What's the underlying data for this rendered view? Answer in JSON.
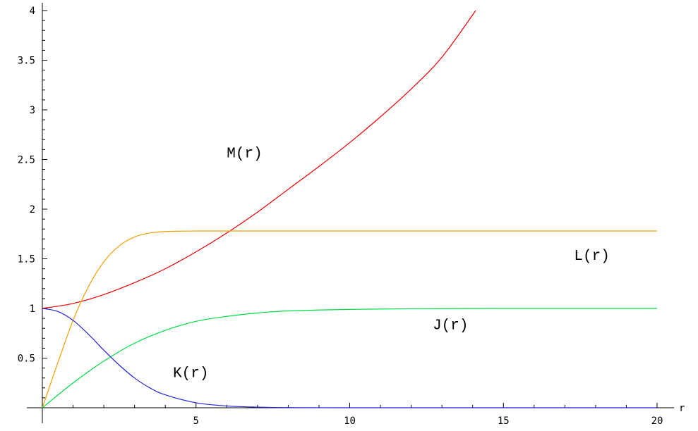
{
  "chart_data": {
    "type": "line",
    "title": "",
    "xlabel": "r",
    "ylabel": "",
    "xlim": [
      0,
      20
    ],
    "ylim": [
      0,
      4
    ],
    "grid": false,
    "x_ticks": [
      "5",
      "10",
      "15",
      "20"
    ],
    "y_ticks": [
      "0.5",
      "1",
      "1.5",
      "2",
      "2.5",
      "3",
      "3.5",
      "4"
    ],
    "series": [
      {
        "name": "M(r)",
        "color": "#ee0000",
        "x": [
          0,
          1,
          2,
          3,
          4,
          5,
          6,
          7,
          8,
          9,
          10,
          11,
          12,
          13,
          14.1
        ],
        "y": [
          1.0,
          1.05,
          1.14,
          1.26,
          1.4,
          1.57,
          1.76,
          1.97,
          2.2,
          2.43,
          2.67,
          2.93,
          3.21,
          3.53,
          4.0
        ]
      },
      {
        "name": "L(r)",
        "color": "#f0a000",
        "x": [
          0,
          0.5,
          1,
          1.5,
          2,
          2.5,
          3,
          3.5,
          4,
          5,
          6,
          8,
          10,
          15,
          20
        ],
        "y": [
          0.0,
          0.45,
          0.88,
          1.22,
          1.47,
          1.63,
          1.72,
          1.76,
          1.775,
          1.78,
          1.78,
          1.78,
          1.78,
          1.78,
          1.78
        ]
      },
      {
        "name": "J(r)",
        "color": "#00dd44",
        "x": [
          0,
          1,
          2,
          3,
          4,
          5,
          6,
          7,
          8,
          10,
          12,
          15,
          20
        ],
        "y": [
          0.0,
          0.25,
          0.47,
          0.65,
          0.78,
          0.87,
          0.92,
          0.955,
          0.975,
          0.99,
          0.997,
          1.0,
          1.0
        ]
      },
      {
        "name": "K(r)",
        "color": "#2222dd",
        "x": [
          0,
          0.5,
          1,
          1.5,
          2,
          2.5,
          3,
          3.5,
          4,
          5,
          6,
          7,
          8,
          10,
          20
        ],
        "y": [
          1.0,
          0.97,
          0.88,
          0.74,
          0.58,
          0.43,
          0.3,
          0.2,
          0.13,
          0.05,
          0.018,
          0.006,
          0.002,
          0.0,
          0.0
        ]
      }
    ],
    "annotations": [
      {
        "text": "M(r)",
        "x": 6.0,
        "y": 2.52
      },
      {
        "text": "L(r)",
        "x": 17.3,
        "y": 1.49
      },
      {
        "text": "J(r)",
        "x": 12.7,
        "y": 0.79
      },
      {
        "text": "K(r)",
        "x": 4.25,
        "y": 0.31
      }
    ]
  }
}
